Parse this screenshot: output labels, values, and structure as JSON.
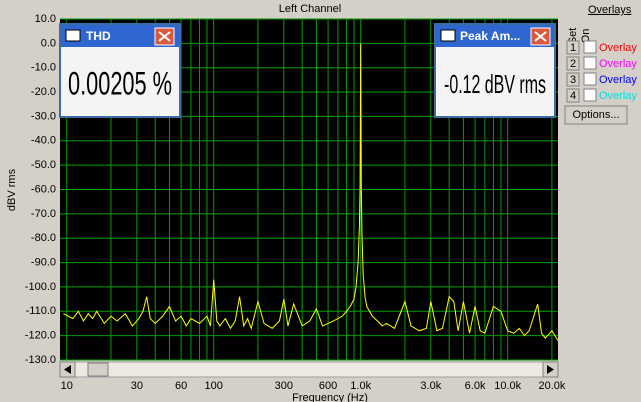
{
  "chart_data": {
    "type": "line",
    "title": "Left Channel",
    "ylabel": "dBV rms",
    "xlabel": "Frequency (Hz)",
    "xscale": "log",
    "grid": true,
    "color": "#ffff00",
    "grid_color": "#00a000",
    "xlim": [
      9,
      22000
    ],
    "ylim": [
      -130,
      10
    ],
    "xticks": [
      10,
      30,
      60,
      100,
      300,
      600,
      {
        "value": 1000,
        "label": "1.0k"
      },
      {
        "value": 3000,
        "label": "3.0k"
      },
      {
        "value": 6000,
        "label": "6.0k"
      },
      {
        "value": 10000,
        "label": "10.0k"
      },
      {
        "value": 20000,
        "label": "20.0k"
      }
    ],
    "x_minor_gridlines": [
      20,
      40,
      50,
      70,
      80,
      90,
      200,
      400,
      500,
      700,
      800,
      900,
      2000,
      4000,
      5000,
      7000,
      8000,
      9000
    ],
    "yticks": [
      {
        "value": 10,
        "label": "10.0"
      },
      {
        "value": 0,
        "label": "0.0"
      },
      {
        "value": -10,
        "label": "-10.0"
      },
      {
        "value": -20,
        "label": "-20.0"
      },
      {
        "value": -30,
        "label": "-30.0"
      },
      {
        "value": -40,
        "label": "-40.0"
      },
      {
        "value": -50,
        "label": "-50.0"
      },
      {
        "value": -60,
        "label": "-60.0"
      },
      {
        "value": -70,
        "label": "-70.0"
      },
      {
        "value": -80,
        "label": "-80.0"
      },
      {
        "value": -90,
        "label": "-90.0"
      },
      {
        "value": -100,
        "label": "-100.0"
      },
      {
        "value": -110,
        "label": "-110.0"
      },
      {
        "value": -120,
        "label": "-120.0"
      },
      {
        "value": -130,
        "label": "-130.0"
      }
    ],
    "x": [
      9.5,
      11,
      12,
      13,
      14,
      15,
      16,
      18,
      20,
      22,
      25,
      28,
      31,
      33,
      35,
      37,
      40,
      45,
      50,
      55,
      60,
      65,
      70,
      80,
      90,
      95,
      100,
      105,
      110,
      120,
      130,
      140,
      150,
      160,
      170,
      180,
      200,
      220,
      250,
      280,
      300,
      320,
      350,
      400,
      450,
      500,
      550,
      600,
      650,
      700,
      750,
      800,
      850,
      900,
      930,
      960,
      980,
      990,
      1000,
      1010,
      1020,
      1040,
      1070,
      1100,
      1200,
      1300,
      1400,
      1500,
      1700,
      2000,
      2200,
      2500,
      2800,
      3000,
      3300,
      3600,
      4000,
      4300,
      4600,
      5000,
      5500,
      6000,
      6500,
      7000,
      8000,
      9000,
      10000,
      11000,
      12000,
      13000,
      14000,
      16000,
      17000,
      18000,
      20000,
      22000
    ],
    "values": [
      -111,
      -113,
      -110,
      -114,
      -111,
      -113,
      -110,
      -115,
      -112,
      -114,
      -111,
      -116,
      -113,
      -110,
      -104,
      -113,
      -115,
      -112,
      -108,
      -114,
      -112,
      -116,
      -113,
      -115,
      -112,
      -116,
      -97,
      -114,
      -116,
      -113,
      -117,
      -114,
      -104,
      -116,
      -113,
      -117,
      -106,
      -115,
      -117,
      -114,
      -105,
      -116,
      -107,
      -116,
      -114,
      -109,
      -116,
      -115,
      -114,
      -113,
      -112,
      -110,
      -108,
      -105,
      -100,
      -90,
      -75,
      -60,
      -0.12,
      -60,
      -78,
      -95,
      -104,
      -108,
      -112,
      -114,
      -116,
      -115,
      -117,
      -106,
      -116,
      -118,
      -117,
      -106,
      -118,
      -117,
      -104,
      -106,
      -118,
      -106,
      -119,
      -108,
      -118,
      -119,
      -108,
      -110,
      -118,
      -119,
      -117,
      -120,
      -118,
      -107,
      -119,
      -121,
      -118,
      -122
    ]
  },
  "widgets": {
    "thd": {
      "title": "THD",
      "value": "0.00205 %"
    },
    "peak": {
      "title": "Peak Am...",
      "value": "-0.12 dBV rms"
    },
    "overlays": {
      "title": "Overlays",
      "set": "Set",
      "on": "On",
      "items": [
        {
          "number": "1",
          "label": "Overlay",
          "color": "#ff0000"
        },
        {
          "number": "2",
          "label": "Overlay",
          "color": "#ff00ff"
        },
        {
          "number": "3",
          "label": "Overlay",
          "color": "#0000ff"
        },
        {
          "number": "4",
          "label": "Overlay",
          "color": "#00e0e0"
        }
      ]
    },
    "options": "Options..."
  }
}
